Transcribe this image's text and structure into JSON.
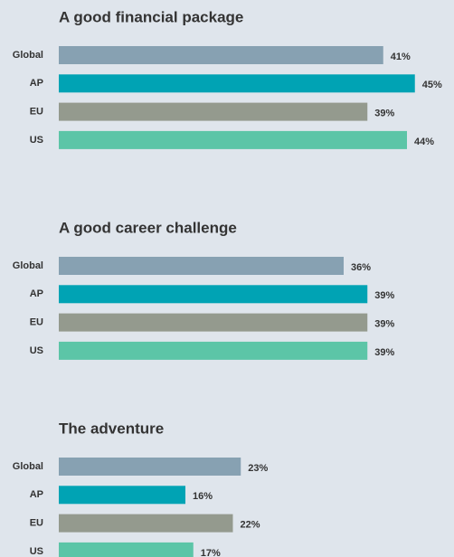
{
  "chart_data": [
    {
      "type": "bar",
      "title": "A good financial package",
      "categories": [
        "Global",
        "AP",
        "EU",
        "US"
      ],
      "values": [
        41,
        45,
        39,
        44
      ],
      "value_labels": [
        "41%",
        "45%",
        "39%",
        "44%"
      ],
      "colors": [
        "#87a1b2",
        "#00a3b4",
        "#949a8e",
        "#5cc5a7"
      ]
    },
    {
      "type": "bar",
      "title": "A good career challenge",
      "categories": [
        "Global",
        "AP",
        "EU",
        "US"
      ],
      "values": [
        36,
        39,
        39,
        39
      ],
      "value_labels": [
        "36%",
        "39%",
        "39%",
        "39%"
      ],
      "colors": [
        "#87a1b2",
        "#00a3b4",
        "#949a8e",
        "#5cc5a7"
      ]
    },
    {
      "type": "bar",
      "title": "The adventure",
      "categories": [
        "Global",
        "AP",
        "EU",
        "US"
      ],
      "values": [
        23,
        16,
        22,
        17
      ],
      "value_labels": [
        "23%",
        "16%",
        "22%",
        "17%"
      ],
      "colors": [
        "#87a1b2",
        "#00a3b4",
        "#949a8e",
        "#5cc5a7"
      ]
    }
  ]
}
